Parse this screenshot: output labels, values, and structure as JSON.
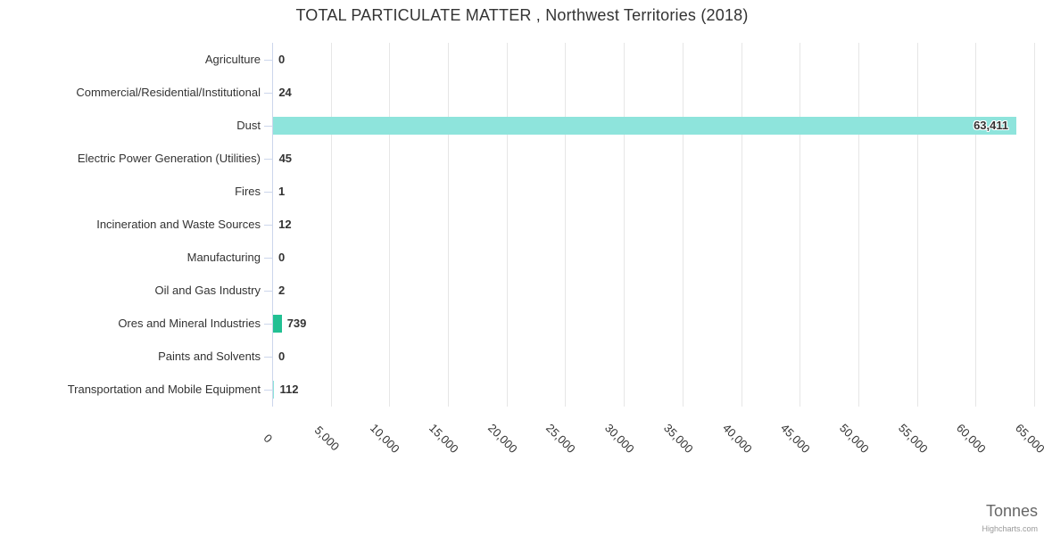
{
  "title": "TOTAL PARTICULATE MATTER , Northwest Territories (2018)",
  "credit": "Highcharts.com",
  "colors": {
    "bar_teal": "#8ee4dc",
    "bar_green": "#22c093",
    "gridline": "#e6e6e6",
    "axis_line": "#ccd6eb",
    "text": "#333333",
    "axis_title_text": "#666666",
    "credit_text": "#999999"
  },
  "chart_data": {
    "type": "bar",
    "orientation": "horizontal",
    "title": "TOTAL PARTICULATE MATTER , Northwest Territories (2018)",
    "categories": [
      "Agriculture",
      "Commercial/Residential/Institutional",
      "Dust",
      "Electric Power Generation (Utilities)",
      "Fires",
      "Incineration and Waste Sources",
      "Manufacturing",
      "Oil and Gas Industry",
      "Ores and Mineral Industries",
      "Paints and Solvents",
      "Transportation and Mobile Equipment"
    ],
    "values": [
      0,
      24,
      63411,
      45,
      1,
      12,
      0,
      2,
      739,
      0,
      112
    ],
    "value_labels": [
      "0",
      "24",
      "63,411",
      "45",
      "1",
      "12",
      "0",
      "2",
      "739",
      "0",
      "112"
    ],
    "bar_colors": [
      "#8ee4dc",
      "#8ee4dc",
      "#8ee4dc",
      "#8ee4dc",
      "#8ee4dc",
      "#8ee4dc",
      "#8ee4dc",
      "#8ee4dc",
      "#22c093",
      "#8ee4dc",
      "#8ee4dc"
    ],
    "value_axis": {
      "title": "Tonnes",
      "min": 0,
      "max": 65000,
      "tick_interval": 5000,
      "tick_labels": [
        "0",
        "5,000",
        "10,000",
        "15,000",
        "20,000",
        "25,000",
        "30,000",
        "35,000",
        "40,000",
        "45,000",
        "50,000",
        "55,000",
        "60,000",
        "65,000"
      ],
      "tick_label_rotation_deg": 45
    },
    "grid": true,
    "legend": false,
    "xlabel": "Tonnes",
    "ylabel": ""
  }
}
